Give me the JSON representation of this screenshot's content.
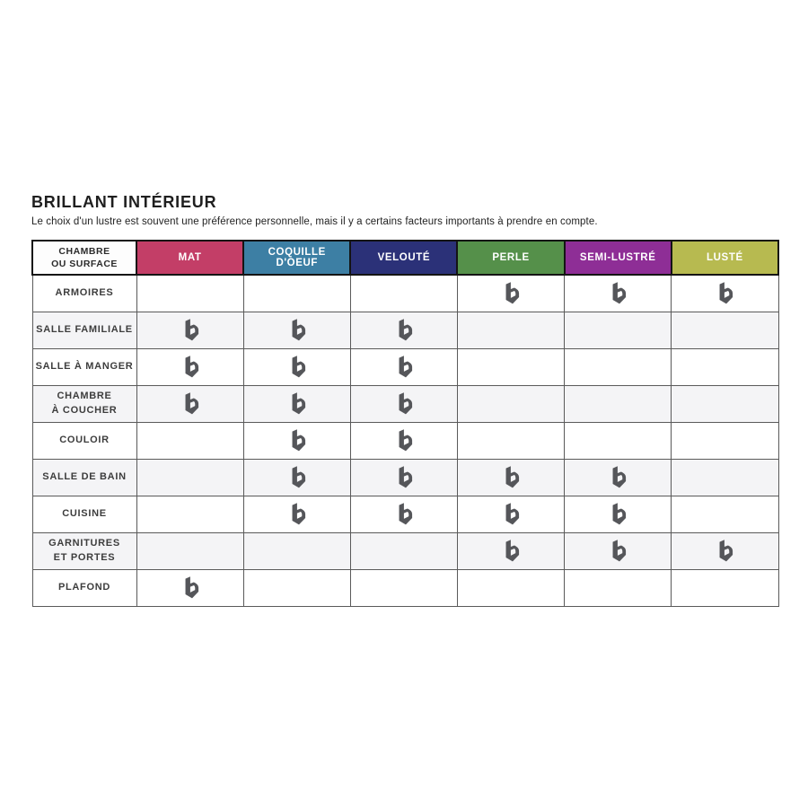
{
  "page": {
    "title": "BRILLANT INTÉRIEUR",
    "subtitle": "Le choix d'un lustre est souvent une préférence personnelle, mais il y a certains facteurs importants à prendre en compte."
  },
  "table": {
    "corner_header": {
      "lines": [
        "CHAMBRE",
        "OU SURFACE"
      ]
    },
    "columns": [
      {
        "label": "MAT",
        "color": "#c33e67"
      },
      {
        "label": "COQUILLE D'OEUF",
        "color": "#3d7fa4"
      },
      {
        "label": "VELOUTÉ",
        "color": "#2b3178"
      },
      {
        "label": "PERLE",
        "color": "#55904a"
      },
      {
        "label": "SEMI-LUSTRÉ",
        "color": "#8e2e96"
      },
      {
        "label": "LUSTÉ",
        "color": "#b7ba50"
      }
    ],
    "rows": [
      {
        "label_lines": [
          "ARMOIRES"
        ],
        "marks": [
          false,
          false,
          false,
          true,
          true,
          true
        ]
      },
      {
        "label_lines": [
          "SALLE FAMILIALE"
        ],
        "marks": [
          true,
          true,
          true,
          false,
          false,
          false
        ]
      },
      {
        "label_lines": [
          "SALLE À MANGER"
        ],
        "marks": [
          true,
          true,
          true,
          false,
          false,
          false
        ]
      },
      {
        "label_lines": [
          "CHAMBRE",
          "À COUCHER"
        ],
        "marks": [
          true,
          true,
          true,
          false,
          false,
          false
        ]
      },
      {
        "label_lines": [
          "COULOIR"
        ],
        "marks": [
          false,
          true,
          true,
          false,
          false,
          false
        ]
      },
      {
        "label_lines": [
          "SALLE DE BAIN"
        ],
        "marks": [
          false,
          true,
          true,
          true,
          true,
          false
        ]
      },
      {
        "label_lines": [
          "CUISINE"
        ],
        "marks": [
          false,
          true,
          true,
          true,
          true,
          false
        ]
      },
      {
        "label_lines": [
          "GARNITURES",
          "ET PORTES"
        ],
        "marks": [
          false,
          false,
          false,
          true,
          true,
          true
        ]
      },
      {
        "label_lines": [
          "PLAFOND"
        ],
        "marks": [
          true,
          false,
          false,
          false,
          false,
          false
        ]
      }
    ],
    "mark_icon": {
      "name": "brand-b-icon",
      "color": "#55565a"
    }
  }
}
